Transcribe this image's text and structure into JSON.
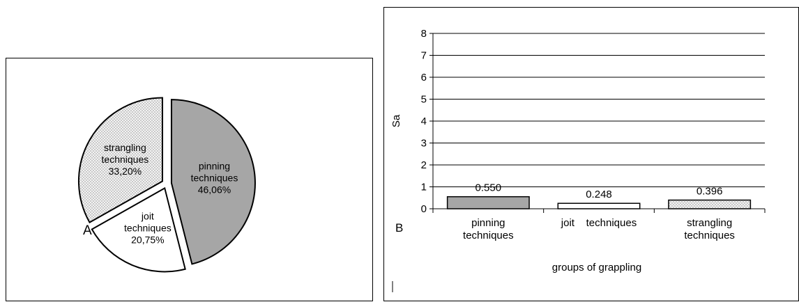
{
  "chart_data": [
    {
      "type": "pie",
      "panel_label": "A",
      "slices": [
        {
          "label_lines": [
            "pinning",
            "techniques"
          ],
          "value": 46.06,
          "value_label": "46,06%",
          "color": "#a6a6a6",
          "pattern": "solid"
        },
        {
          "label_lines": [
            "joit",
            "techniques"
          ],
          "value": 20.75,
          "value_label": "20,75%",
          "color": "#ffffff",
          "pattern": "solid"
        },
        {
          "label_lines": [
            "strangling",
            "techniques"
          ],
          "value": 33.2,
          "value_label": "33,20%",
          "color": "#f0f0f0",
          "pattern": "dots"
        }
      ],
      "exploded": true
    },
    {
      "type": "bar",
      "panel_label": "B",
      "categories": [
        [
          "pinning",
          "techniques"
        ],
        [
          "joit    techniques"
        ],
        [
          "strangling",
          "techniques"
        ]
      ],
      "values": [
        0.55,
        0.248,
        0.396
      ],
      "value_labels": [
        "0.550",
        "0.248",
        "0.396"
      ],
      "bar_colors": [
        "#a6a6a6",
        "#ffffff",
        "#f0f0f0"
      ],
      "bar_patterns": [
        "solid",
        "solid",
        "dots"
      ],
      "xlabel": "groups of grappling",
      "ylabel": "Sa",
      "ylim": [
        0,
        8
      ],
      "yticks": [
        "0",
        "1",
        "2",
        "3",
        "4",
        "5",
        "6",
        "7",
        "8"
      ],
      "grid": true
    }
  ]
}
